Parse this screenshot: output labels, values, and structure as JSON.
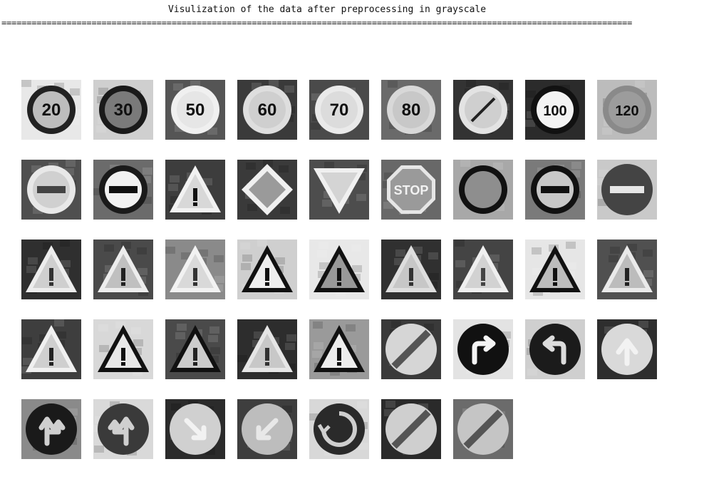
{
  "output": {
    "title": "Visulization of the data after preprocessing in grayscale",
    "separator": "=============================================================================================================================="
  },
  "figure": {
    "columns": 9,
    "images": [
      {
        "kind": "circle",
        "bg": "#e8e8e8",
        "ring": "#222",
        "fill": "#bdbdbd",
        "text": "20"
      },
      {
        "kind": "circle",
        "bg": "#cfcfcf",
        "ring": "#1a1a1a",
        "fill": "#7a7a7a",
        "text": "30"
      },
      {
        "kind": "circle",
        "bg": "#555",
        "ring": "#f0f0f0",
        "fill": "#e6e6e6",
        "text": "50"
      },
      {
        "kind": "circle",
        "bg": "#3a3a3a",
        "ring": "#dedede",
        "fill": "#cfcfcf",
        "text": "60"
      },
      {
        "kind": "circle",
        "bg": "#4a4a4a",
        "ring": "#eaeaea",
        "fill": "#dcdcdc",
        "text": "70"
      },
      {
        "kind": "circle",
        "bg": "#6a6a6a",
        "ring": "#d8d8d8",
        "fill": "#c8c8c8",
        "text": "80"
      },
      {
        "kind": "noentry80",
        "bg": "#333",
        "ring": "#e3e3e3",
        "fill": "#cfcfcf"
      },
      {
        "kind": "circle",
        "bg": "#2b2b2b",
        "ring": "#111",
        "fill": "#f3f3f3",
        "text": "100"
      },
      {
        "kind": "circle",
        "bg": "#bcbcbc",
        "ring": "#8a8a8a",
        "fill": "#9c9c9c",
        "text": "120"
      },
      {
        "kind": "bar",
        "bg": "#4f4f4f",
        "ring": "#e8e8e8",
        "fill": "#d0d0d0"
      },
      {
        "kind": "bar",
        "bg": "#6b6b6b",
        "ring": "#1a1a1a",
        "fill": "#f2f2f2"
      },
      {
        "kind": "triangle",
        "bg": "#3d3d3d",
        "edge": "#f2f2f2",
        "fill": "#d8d8d8",
        "sym": "#111"
      },
      {
        "kind": "diamond",
        "bg": "#3a3a3a",
        "edge": "#f0f0f0",
        "fill": "#9a9a9a"
      },
      {
        "kind": "yield",
        "bg": "#4d4d4d",
        "edge": "#f0f0f0",
        "fill": "#d4d4d4"
      },
      {
        "kind": "stop",
        "bg": "#686868",
        "fill": "#9a9a9a",
        "text": "STOP"
      },
      {
        "kind": "circle",
        "bg": "#a8a8a8",
        "ring": "#111",
        "fill": "#8e8e8e",
        "text": ""
      },
      {
        "kind": "bar",
        "bg": "#7a7a7a",
        "ring": "#111",
        "fill": "#c8c8c8"
      },
      {
        "kind": "noentry",
        "bg": "#c9c9c9",
        "fill": "#444"
      },
      {
        "kind": "triangle",
        "bg": "#2f2f2f",
        "edge": "#ededed",
        "fill": "#cfcfcf",
        "sym": "#333"
      },
      {
        "kind": "triangle",
        "bg": "#4a4a4a",
        "edge": "#ededed",
        "fill": "#c0c0c0",
        "sym": "#222"
      },
      {
        "kind": "triangle",
        "bg": "#8a8a8a",
        "edge": "#f2f2f2",
        "fill": "#d9d9d9",
        "sym": "#333"
      },
      {
        "kind": "triangle",
        "bg": "#cfcfcf",
        "edge": "#111",
        "fill": "#eeeeee",
        "sym": "#111"
      },
      {
        "kind": "triangle",
        "bg": "#e8e8e8",
        "edge": "#111",
        "fill": "#999",
        "sym": "#111"
      },
      {
        "kind": "triangle",
        "bg": "#303030",
        "edge": "#dedede",
        "fill": "#c7c7c7",
        "sym": "#333"
      },
      {
        "kind": "triangle",
        "bg": "#444",
        "edge": "#efefef",
        "fill": "#d2d2d2",
        "sym": "#444"
      },
      {
        "kind": "triangle",
        "bg": "#e6e6e6",
        "edge": "#111",
        "fill": "#bcbcbc",
        "sym": "#111"
      },
      {
        "kind": "triangle",
        "bg": "#505050",
        "edge": "#eaeaea",
        "fill": "#bcbcbc",
        "sym": "#222"
      },
      {
        "kind": "triangle",
        "bg": "#3e3e3e",
        "edge": "#f0f0f0",
        "fill": "#cfcfcf",
        "sym": "#222"
      },
      {
        "kind": "triangle",
        "bg": "#d8d8d8",
        "edge": "#111",
        "fill": "#e8e8e8",
        "sym": "#111"
      },
      {
        "kind": "triangle",
        "bg": "#4a4a4a",
        "edge": "#111",
        "fill": "#cccccc",
        "sym": "#222"
      },
      {
        "kind": "triangle",
        "bg": "#2d2d2d",
        "edge": "#e6e6e6",
        "fill": "#c8c8c8",
        "sym": "#333"
      },
      {
        "kind": "triangle",
        "bg": "#9a9a9a",
        "edge": "#111",
        "fill": "#ededed",
        "sym": "#111"
      },
      {
        "kind": "end",
        "bg": "#3a3a3a",
        "fill": "#d6d6d6"
      },
      {
        "kind": "arrowR",
        "bg": "#e3e3e3",
        "fill": "#111",
        "sym": "#f5f5f5"
      },
      {
        "kind": "arrowL",
        "bg": "#cfcfcf",
        "fill": "#1b1b1b",
        "sym": "#dcdcdc"
      },
      {
        "kind": "arrowUp",
        "bg": "#2e2e2e",
        "fill": "#d9d9d9",
        "sym": "#f2f2f2"
      },
      {
        "kind": "arrowUpR",
        "bg": "#8a8a8a",
        "fill": "#1a1a1a",
        "sym": "#cfcfcf"
      },
      {
        "kind": "arrowUpL",
        "bg": "#d9d9d9",
        "fill": "#3a3a3a",
        "sym": "#cfcfcf"
      },
      {
        "kind": "arrowDR",
        "bg": "#2b2b2b",
        "fill": "#d0d0d0",
        "sym": "#f2f2f2"
      },
      {
        "kind": "arrowDL",
        "bg": "#3e3e3e",
        "fill": "#bdbdbd",
        "sym": "#e8e8e8"
      },
      {
        "kind": "round",
        "bg": "#d8d8d8",
        "fill": "#2a2a2a",
        "sym": "#cfcfcf"
      },
      {
        "kind": "end",
        "bg": "#2a2a2a",
        "fill": "#cfcfcf"
      },
      {
        "kind": "end",
        "bg": "#6b6b6b",
        "fill": "#c5c5c5"
      }
    ]
  }
}
